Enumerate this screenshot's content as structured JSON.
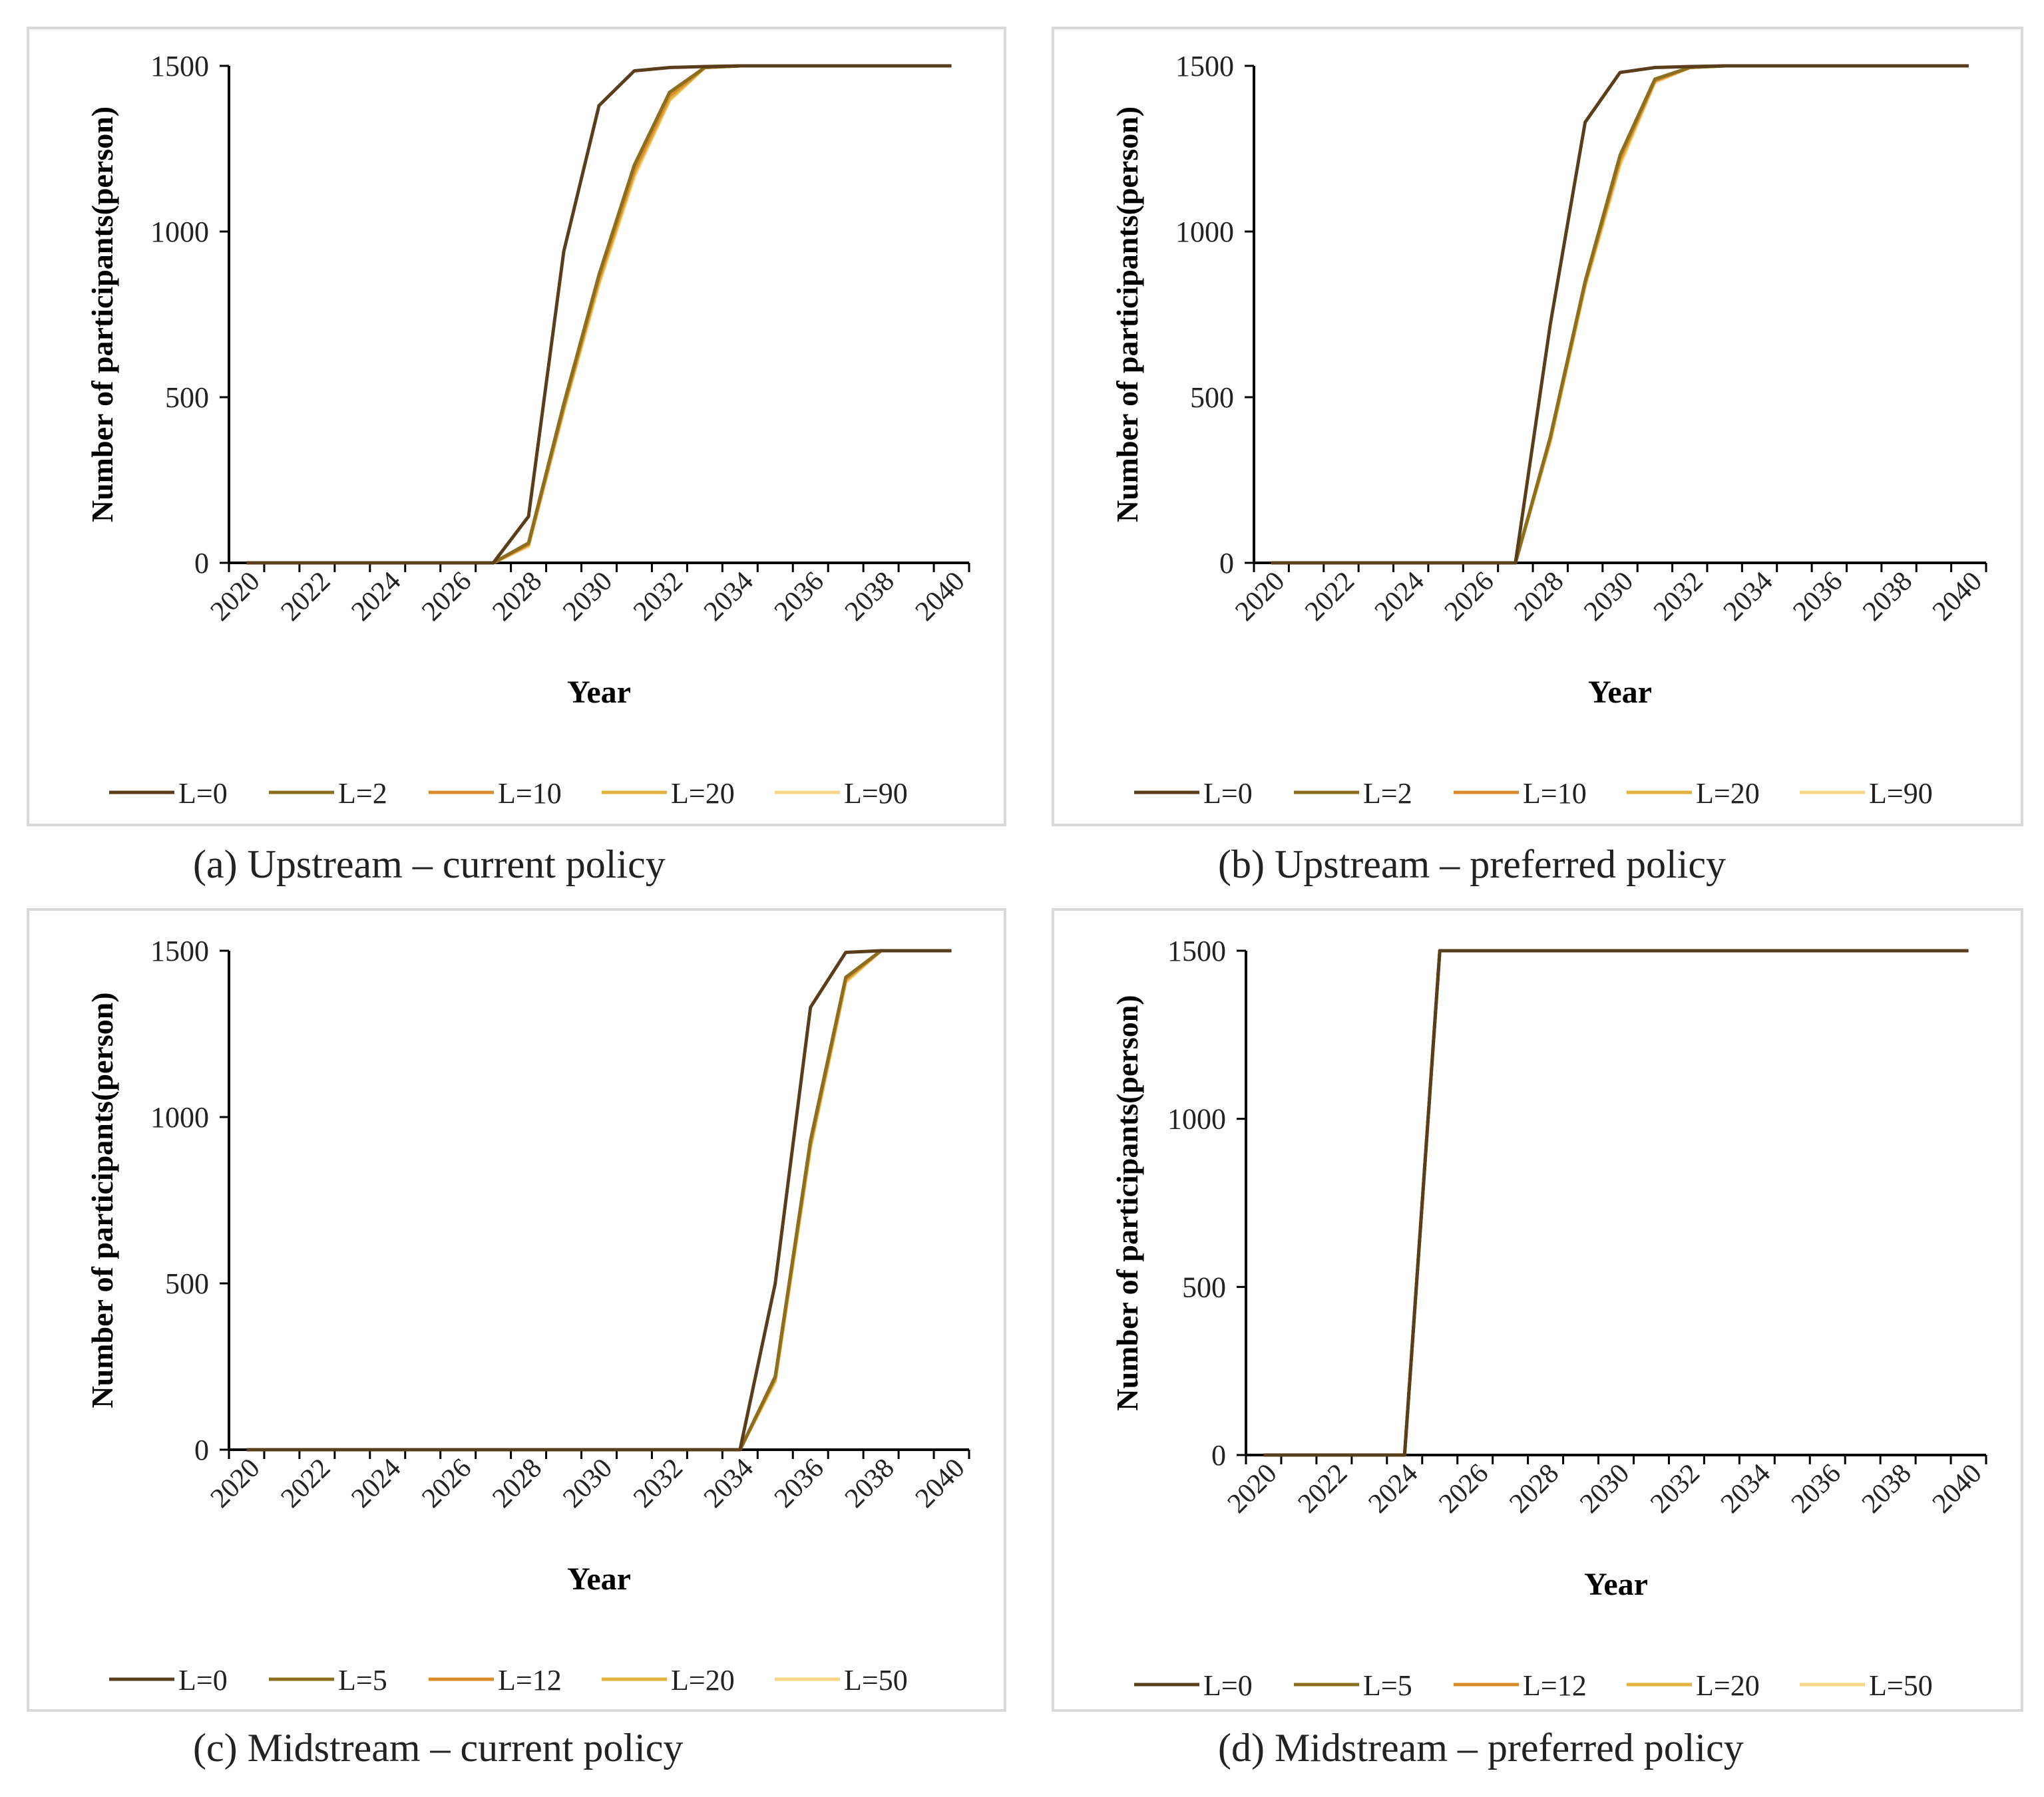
{
  "chart_data": [
    {
      "type": "line",
      "caption": "(a) Upstream – current policy",
      "title": "",
      "xlabel": "Year",
      "ylabel": "Number of participants(person)",
      "xlim": [
        2020,
        2040
      ],
      "ylim": [
        0,
        1500
      ],
      "xticks": [
        2020,
        2022,
        2024,
        2026,
        2028,
        2030,
        2032,
        2034,
        2036,
        2038,
        2040
      ],
      "yticks": [
        0,
        500,
        1000,
        1500
      ],
      "grid": false,
      "legend_position": "bottom",
      "x": [
        2020,
        2021,
        2022,
        2023,
        2024,
        2025,
        2026,
        2027,
        2028,
        2029,
        2030,
        2031,
        2032,
        2033,
        2034,
        2035,
        2036,
        2037,
        2038,
        2039,
        2040
      ],
      "series": [
        {
          "name": "L=0",
          "color": "#5a3e1b",
          "values": [
            0,
            0,
            0,
            0,
            0,
            0,
            0,
            0,
            140,
            940,
            1380,
            1485,
            1495,
            1498,
            1500,
            1500,
            1500,
            1500,
            1500,
            1500,
            1500
          ]
        },
        {
          "name": "L=2",
          "color": "#8c6f1e",
          "values": [
            0,
            0,
            0,
            0,
            0,
            0,
            0,
            0,
            60,
            480,
            870,
            1200,
            1420,
            1495,
            1500,
            1500,
            1500,
            1500,
            1500,
            1500,
            1500
          ]
        },
        {
          "name": "L=10",
          "color": "#d98a2b",
          "values": [
            0,
            0,
            0,
            0,
            0,
            0,
            0,
            0,
            55,
            470,
            860,
            1185,
            1410,
            1495,
            1500,
            1500,
            1500,
            1500,
            1500,
            1500,
            1500
          ]
        },
        {
          "name": "L=20",
          "color": "#e3b23c",
          "values": [
            0,
            0,
            0,
            0,
            0,
            0,
            0,
            0,
            55,
            465,
            850,
            1175,
            1400,
            1495,
            1500,
            1500,
            1500,
            1500,
            1500,
            1500,
            1500
          ]
        },
        {
          "name": "L=90",
          "color": "#f7d58a",
          "values": [
            0,
            0,
            0,
            0,
            0,
            0,
            0,
            0,
            50,
            460,
            840,
            1165,
            1395,
            1495,
            1500,
            1500,
            1500,
            1500,
            1500,
            1500,
            1500
          ]
        }
      ]
    },
    {
      "type": "line",
      "caption": "(b) Upstream – preferred policy",
      "title": "",
      "xlabel": "Year",
      "ylabel": "Number of participants(person)",
      "xlim": [
        2020,
        2040
      ],
      "ylim": [
        0,
        1500
      ],
      "xticks": [
        2020,
        2022,
        2024,
        2026,
        2028,
        2030,
        2032,
        2034,
        2036,
        2038,
        2040
      ],
      "yticks": [
        0,
        500,
        1000,
        1500
      ],
      "grid": false,
      "legend_position": "bottom",
      "x": [
        2020,
        2021,
        2022,
        2023,
        2024,
        2025,
        2026,
        2027,
        2028,
        2029,
        2030,
        2031,
        2032,
        2033,
        2034,
        2035,
        2036,
        2037,
        2038,
        2039,
        2040
      ],
      "series": [
        {
          "name": "L=0",
          "color": "#5a3e1b",
          "values": [
            0,
            0,
            0,
            0,
            0,
            0,
            0,
            0,
            720,
            1330,
            1480,
            1495,
            1498,
            1500,
            1500,
            1500,
            1500,
            1500,
            1500,
            1500,
            1500
          ]
        },
        {
          "name": "L=2",
          "color": "#8c6f1e",
          "values": [
            0,
            0,
            0,
            0,
            0,
            0,
            0,
            0,
            380,
            850,
            1230,
            1460,
            1495,
            1500,
            1500,
            1500,
            1500,
            1500,
            1500,
            1500,
            1500
          ]
        },
        {
          "name": "L=10",
          "color": "#d98a2b",
          "values": [
            0,
            0,
            0,
            0,
            0,
            0,
            0,
            0,
            375,
            845,
            1220,
            1455,
            1495,
            1500,
            1500,
            1500,
            1500,
            1500,
            1500,
            1500,
            1500
          ]
        },
        {
          "name": "L=20",
          "color": "#e3b23c",
          "values": [
            0,
            0,
            0,
            0,
            0,
            0,
            0,
            0,
            370,
            840,
            1210,
            1455,
            1495,
            1500,
            1500,
            1500,
            1500,
            1500,
            1500,
            1500,
            1500
          ]
        },
        {
          "name": "L=90",
          "color": "#f7d58a",
          "values": [
            0,
            0,
            0,
            0,
            0,
            0,
            0,
            0,
            365,
            835,
            1200,
            1450,
            1495,
            1500,
            1500,
            1500,
            1500,
            1500,
            1500,
            1500,
            1500
          ]
        }
      ]
    },
    {
      "type": "line",
      "caption": "(c) Midstream – current policy",
      "title": "",
      "xlabel": "Year",
      "ylabel": "Number of participants(person)",
      "xlim": [
        2020,
        2040
      ],
      "ylim": [
        0,
        1500
      ],
      "xticks": [
        2020,
        2022,
        2024,
        2026,
        2028,
        2030,
        2032,
        2034,
        2036,
        2038,
        2040
      ],
      "yticks": [
        0,
        500,
        1000,
        1500
      ],
      "grid": false,
      "legend_position": "bottom",
      "x": [
        2020,
        2021,
        2022,
        2023,
        2024,
        2025,
        2026,
        2027,
        2028,
        2029,
        2030,
        2031,
        2032,
        2033,
        2034,
        2035,
        2036,
        2037,
        2038,
        2039,
        2040
      ],
      "series": [
        {
          "name": "L=0",
          "color": "#5a3e1b",
          "values": [
            0,
            0,
            0,
            0,
            0,
            0,
            0,
            0,
            0,
            0,
            0,
            0,
            0,
            0,
            0,
            500,
            1330,
            1495,
            1500,
            1500,
            1500
          ]
        },
        {
          "name": "L=5",
          "color": "#8c6f1e",
          "values": [
            0,
            0,
            0,
            0,
            0,
            0,
            0,
            0,
            0,
            0,
            0,
            0,
            0,
            0,
            0,
            220,
            930,
            1420,
            1500,
            1500,
            1500
          ]
        },
        {
          "name": "L=12",
          "color": "#d98a2b",
          "values": [
            0,
            0,
            0,
            0,
            0,
            0,
            0,
            0,
            0,
            0,
            0,
            0,
            0,
            0,
            0,
            215,
            920,
            1415,
            1500,
            1500,
            1500
          ]
        },
        {
          "name": "L=20",
          "color": "#e3b23c",
          "values": [
            0,
            0,
            0,
            0,
            0,
            0,
            0,
            0,
            0,
            0,
            0,
            0,
            0,
            0,
            0,
            210,
            915,
            1410,
            1500,
            1500,
            1500
          ]
        },
        {
          "name": "L=50",
          "color": "#f7d58a",
          "values": [
            0,
            0,
            0,
            0,
            0,
            0,
            0,
            0,
            0,
            0,
            0,
            0,
            0,
            0,
            0,
            205,
            905,
            1405,
            1500,
            1500,
            1500
          ]
        }
      ]
    },
    {
      "type": "line",
      "caption": "(d) Midstream – preferred policy",
      "title": "",
      "xlabel": "Year",
      "ylabel": "Number of participants(person)",
      "xlim": [
        2020,
        2040
      ],
      "ylim": [
        0,
        1500
      ],
      "xticks": [
        2020,
        2022,
        2024,
        2026,
        2028,
        2030,
        2032,
        2034,
        2036,
        2038,
        2040
      ],
      "yticks": [
        0,
        500,
        1000,
        1500
      ],
      "grid": false,
      "legend_position": "bottom",
      "x": [
        2020,
        2021,
        2022,
        2023,
        2024,
        2025,
        2026,
        2027,
        2028,
        2029,
        2030,
        2031,
        2032,
        2033,
        2034,
        2035,
        2036,
        2037,
        2038,
        2039,
        2040
      ],
      "series": [
        {
          "name": "L=0",
          "color": "#5a3e1b",
          "values": [
            0,
            0,
            0,
            0,
            0,
            1500,
            1500,
            1500,
            1500,
            1500,
            1500,
            1500,
            1500,
            1500,
            1500,
            1500,
            1500,
            1500,
            1500,
            1500,
            1500
          ]
        },
        {
          "name": "L=5",
          "color": "#8c6f1e",
          "values": [
            0,
            0,
            0,
            0,
            0,
            1500,
            1500,
            1500,
            1500,
            1500,
            1500,
            1500,
            1500,
            1500,
            1500,
            1500,
            1500,
            1500,
            1500,
            1500,
            1500
          ]
        },
        {
          "name": "L=12",
          "color": "#d98a2b",
          "values": [
            0,
            0,
            0,
            0,
            0,
            1500,
            1500,
            1500,
            1500,
            1500,
            1500,
            1500,
            1500,
            1500,
            1500,
            1500,
            1500,
            1500,
            1500,
            1500,
            1500
          ]
        },
        {
          "name": "L=20",
          "color": "#e3b23c",
          "values": [
            0,
            0,
            0,
            0,
            0,
            1500,
            1500,
            1500,
            1500,
            1500,
            1500,
            1500,
            1500,
            1500,
            1500,
            1500,
            1500,
            1500,
            1500,
            1500,
            1500
          ]
        },
        {
          "name": "L=50",
          "color": "#f7d58a",
          "values": [
            0,
            0,
            0,
            0,
            0,
            1500,
            1500,
            1500,
            1500,
            1500,
            1500,
            1500,
            1500,
            1500,
            1500,
            1500,
            1500,
            1500,
            1500,
            1500,
            1500
          ]
        }
      ]
    }
  ]
}
